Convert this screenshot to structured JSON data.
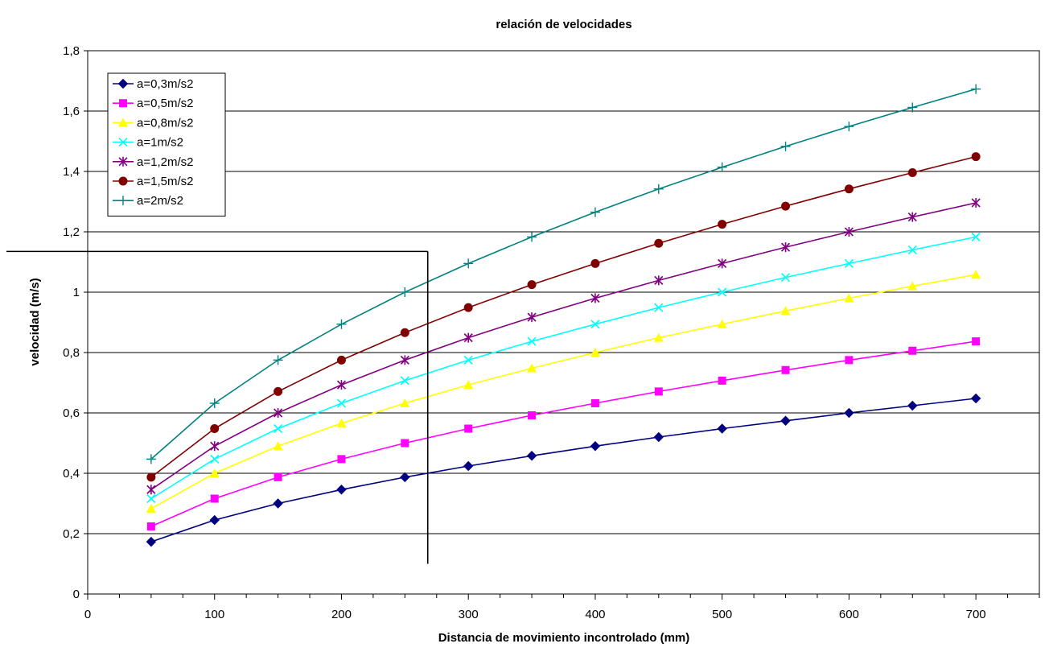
{
  "chart_data": {
    "type": "line",
    "title": "relación de velocidades",
    "xlabel": "Distancia de movimiento incontrolado (mm)",
    "ylabel": "velocidad (m/s)",
    "xlim": [
      0,
      750
    ],
    "ylim": [
      0,
      1.8
    ],
    "x_ticks": [
      "0",
      "100",
      "200",
      "300",
      "400",
      "500",
      "600",
      "700"
    ],
    "y_ticks": [
      "0",
      "0,2",
      "0,4",
      "0,6",
      "0,8",
      "1",
      "1,2",
      "1,4",
      "1,6",
      "1,8"
    ],
    "grid": "horizontal",
    "legend_position": "top-left",
    "x": [
      50,
      100,
      150,
      200,
      250,
      300,
      350,
      400,
      450,
      500,
      550,
      600,
      650,
      700
    ],
    "series": [
      {
        "name": "a=0,3m/s2",
        "color": "#000080",
        "marker": "diamond",
        "values": [
          0.173,
          0.245,
          0.3,
          0.346,
          0.387,
          0.424,
          0.458,
          0.49,
          0.52,
          0.548,
          0.574,
          0.6,
          0.624,
          0.648
        ]
      },
      {
        "name": "a=0,5m/s2",
        "color": "#FF00FF",
        "marker": "square",
        "values": [
          0.224,
          0.316,
          0.387,
          0.447,
          0.5,
          0.548,
          0.592,
          0.632,
          0.671,
          0.707,
          0.742,
          0.775,
          0.806,
          0.837
        ]
      },
      {
        "name": "a=0,8m/s2",
        "color": "#FFFF00",
        "marker": "triangle",
        "values": [
          0.283,
          0.4,
          0.49,
          0.566,
          0.632,
          0.693,
          0.748,
          0.8,
          0.849,
          0.894,
          0.938,
          0.98,
          1.02,
          1.058
        ]
      },
      {
        "name": "a=1m/s2",
        "color": "#00FFFF",
        "marker": "x",
        "values": [
          0.316,
          0.447,
          0.548,
          0.632,
          0.707,
          0.775,
          0.837,
          0.894,
          0.949,
          1.0,
          1.049,
          1.095,
          1.14,
          1.183
        ]
      },
      {
        "name": "a=1,2m/s2",
        "color": "#800080",
        "marker": "star",
        "values": [
          0.346,
          0.49,
          0.6,
          0.693,
          0.775,
          0.849,
          0.917,
          0.98,
          1.039,
          1.095,
          1.149,
          1.2,
          1.249,
          1.296
        ]
      },
      {
        "name": "a=1,5m/s2",
        "color": "#800000",
        "marker": "circle",
        "values": [
          0.387,
          0.548,
          0.671,
          0.775,
          0.866,
          0.949,
          1.025,
          1.095,
          1.162,
          1.225,
          1.285,
          1.342,
          1.396,
          1.449
        ]
      },
      {
        "name": "a=2m/s2",
        "color": "#008080",
        "marker": "plus",
        "values": [
          0.447,
          0.632,
          0.775,
          0.894,
          1.0,
          1.095,
          1.183,
          1.265,
          1.342,
          1.414,
          1.483,
          1.549,
          1.612,
          1.673
        ]
      }
    ],
    "reference_lines": {
      "horizontal_y": 1.135,
      "vertical_x": 268,
      "vertical_from_y": 0.1,
      "color": "#000000"
    }
  }
}
